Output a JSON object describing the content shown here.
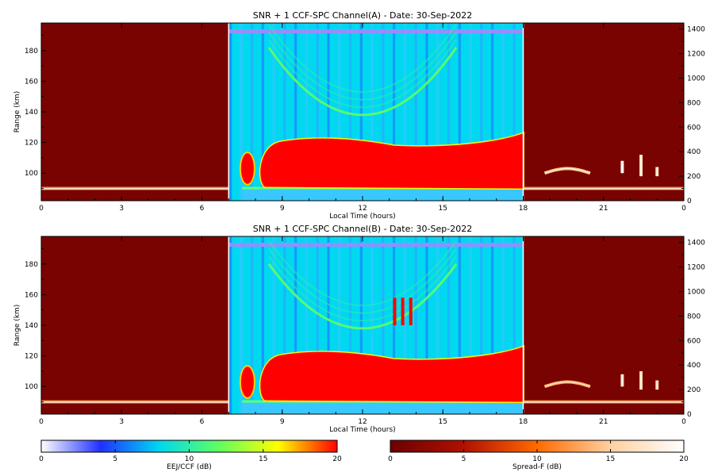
{
  "chart_data": [
    {
      "type": "heatmap",
      "title": "SNR + 1 CCF-SPC Channel(A) - Date: 30-Sep-2022",
      "xlabel": "Local Time (hours)",
      "ylabel": "Range (km)",
      "xticks": [
        "0",
        "3",
        "6",
        "9",
        "12",
        "15",
        "18",
        "21",
        "0"
      ],
      "yticks_left": [
        "100",
        "120",
        "140",
        "160",
        "180"
      ],
      "yticks_right": [
        "0",
        "200",
        "400",
        "600",
        "800",
        "1000",
        "1200",
        "1400"
      ],
      "xlim": [
        0,
        24
      ],
      "ylim_left": [
        82,
        198
      ],
      "ylim_right": [
        0,
        1450
      ],
      "segments": [
        {
          "name": "night-1",
          "from_hour": 0,
          "to_hour": 7,
          "colorscale": "Spread-F",
          "background_db": 1
        },
        {
          "name": "day",
          "from_hour": 7,
          "to_hour": 18,
          "colorscale": "EEJ/CCF",
          "background_db": 8
        },
        {
          "name": "night-2",
          "from_hour": 18,
          "to_hour": 24,
          "colorscale": "Spread-F",
          "background_db": 1
        }
      ],
      "features": {
        "eej_layer": {
          "start_hour": 7.5,
          "end_hour": 18,
          "lower_km": 90,
          "upper_km_start": 122,
          "upper_km_end": 126,
          "snr_db": 20
        },
        "eej_blob": {
          "center_hour": 7.7,
          "lower_km": 93,
          "upper_km": 113,
          "snr_db": 20
        },
        "ccf_arc": {
          "start_hour": 8.5,
          "end_hour": 15.5,
          "range_edges_km": 182,
          "range_min_km": 138,
          "snr_db": 12
        },
        "spread_f_streaks": [
          {
            "from_hour": 18.8,
            "to_hour": 20.5,
            "range_km": 100,
            "snr_db": 14
          },
          {
            "hour": 21.7,
            "from_km": 100,
            "to_km": 108,
            "snr_db": 18
          },
          {
            "hour": 22.4,
            "from_km": 98,
            "to_km": 112,
            "snr_db": 16
          },
          {
            "hour": 23.0,
            "from_km": 98,
            "to_km": 104,
            "snr_db": 16
          }
        ]
      }
    },
    {
      "type": "heatmap",
      "title": "SNR + 1 CCF-SPC Channel(B) - Date: 30-Sep-2022",
      "xlabel": "Local Time (hours)",
      "ylabel": "Range (km)",
      "xticks": [
        "0",
        "3",
        "6",
        "9",
        "12",
        "15",
        "18",
        "21",
        "0"
      ],
      "yticks_left": [
        "100",
        "120",
        "140",
        "160",
        "180"
      ],
      "yticks_right": [
        "0",
        "200",
        "400",
        "600",
        "800",
        "1000",
        "1200",
        "1400"
      ],
      "xlim": [
        0,
        24
      ],
      "ylim_left": [
        82,
        198
      ],
      "ylim_right": [
        0,
        1450
      ],
      "segments": [
        {
          "name": "night-1",
          "from_hour": 0,
          "to_hour": 7,
          "colorscale": "Spread-F",
          "background_db": 1
        },
        {
          "name": "day",
          "from_hour": 7,
          "to_hour": 18,
          "colorscale": "EEJ/CCF",
          "background_db": 8
        },
        {
          "name": "night-2",
          "from_hour": 18,
          "to_hour": 24,
          "colorscale": "Spread-F",
          "background_db": 1
        }
      ],
      "features": {
        "eej_layer": {
          "start_hour": 7.5,
          "end_hour": 18,
          "lower_km": 90,
          "upper_km_start": 122,
          "upper_km_end": 126,
          "snr_db": 20
        },
        "eej_blob": {
          "center_hour": 7.7,
          "lower_km": 93,
          "upper_km": 113,
          "snr_db": 20
        },
        "ccf_arc": {
          "start_hour": 8.5,
          "end_hour": 15.5,
          "range_edges_km": 180,
          "range_min_km": 138,
          "snr_db": 12
        },
        "ccf_patch": {
          "from_hour": 13.2,
          "to_hour": 13.8,
          "from_km": 140,
          "to_km": 158,
          "snr_db": 20
        },
        "spread_f_streaks": [
          {
            "from_hour": 18.8,
            "to_hour": 20.5,
            "range_km": 100,
            "snr_db": 13
          },
          {
            "hour": 21.7,
            "from_km": 100,
            "to_km": 108,
            "snr_db": 16
          },
          {
            "hour": 22.4,
            "from_km": 98,
            "to_km": 110,
            "snr_db": 15
          },
          {
            "hour": 23.0,
            "from_km": 98,
            "to_km": 104,
            "snr_db": 15
          }
        ]
      }
    }
  ],
  "colorbars": [
    {
      "label": "EEJ/CCF (dB)",
      "ticks": [
        "0",
        "5",
        "10",
        "15",
        "20"
      ],
      "range": [
        0,
        20
      ],
      "stops": [
        "#ffffff",
        "#2030ff",
        "#00d8f0",
        "#60ff60",
        "#ffff00",
        "#ff0000"
      ]
    },
    {
      "label": "Spread-F (dB)",
      "ticks": [
        "0",
        "5",
        "10",
        "15",
        "20"
      ],
      "range": [
        0,
        20
      ],
      "stops": [
        "#6b0000",
        "#b01000",
        "#ff6a00",
        "#ffd0a0",
        "#ffffff"
      ]
    }
  ]
}
